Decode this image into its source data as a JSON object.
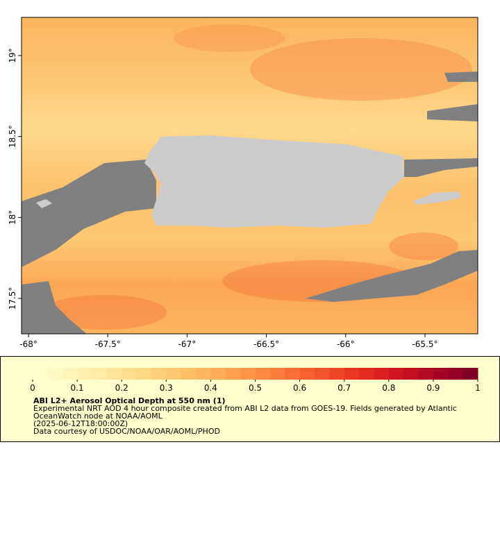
{
  "map": {
    "type": "map",
    "xlim": [
      -68.044,
      -65.167
    ],
    "ylim": [
      17.281,
      19.236
    ],
    "xticks": [
      {
        "value": -68,
        "label": "-68°"
      },
      {
        "value": -67.5,
        "label": "-67.5°"
      },
      {
        "value": -67,
        "label": "-67°"
      },
      {
        "value": -66.5,
        "label": "-66.5°"
      },
      {
        "value": -66,
        "label": "-66°"
      },
      {
        "value": -65.5,
        "label": "-65.5°"
      }
    ],
    "yticks": [
      {
        "value": 17.5,
        "label": "17.5°"
      },
      {
        "value": 18,
        "label": "18°"
      },
      {
        "value": 18.5,
        "label": "18.5°"
      },
      {
        "value": 19,
        "label": "19°"
      }
    ]
  },
  "colorbar": {
    "lim": [
      0,
      1
    ],
    "ticks": [
      0,
      0.1,
      0.2,
      0.3,
      0.4,
      0.5,
      0.6,
      0.7,
      0.8,
      0.9,
      1
    ],
    "colors": [
      "#ffffcc",
      "#fffac2",
      "#fff5b8",
      "#fff0ad",
      "#ffeba3",
      "#ffe599",
      "#ffdf8f",
      "#fed885",
      "#fed07b",
      "#fec872",
      "#febf69",
      "#feb660",
      "#fdab58",
      "#fda050",
      "#fd9548",
      "#fc8a42",
      "#fc7d3c",
      "#fb6f36",
      "#f96131",
      "#f5532c",
      "#f04527",
      "#ea3722",
      "#e32a1f",
      "#da1f1e",
      "#cf151f",
      "#c20d22",
      "#b40724",
      "#a50226",
      "#950026",
      "#800026"
    ]
  },
  "legend": {
    "title": "ABI L2+ Aerosol Optical Depth at 550 nm (1)",
    "lines": [
      "Experimental NRT AOD 4 hour composite created from ABI L2 data from GOES-19. Fields generated by Atlantic",
      "OceanWatch node at NOAA/AOML",
      "(2025-06-12T18:00:00Z)",
      "Data courtesy of USDOC/NOAA/OAR/AOML/PHOD"
    ]
  }
}
